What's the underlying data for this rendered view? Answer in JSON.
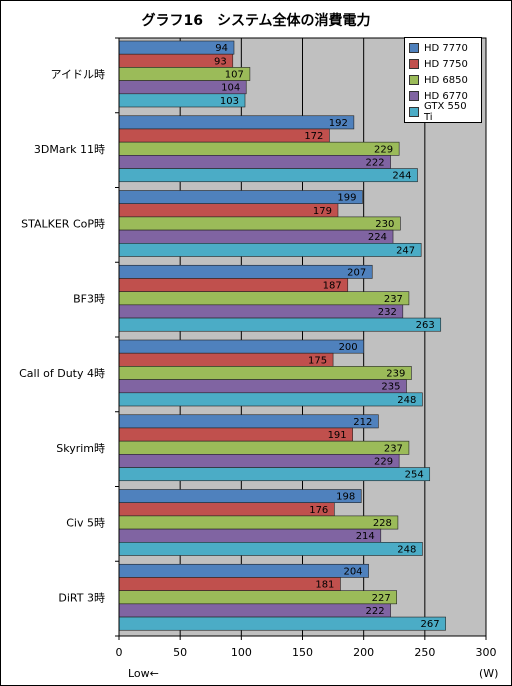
{
  "chart_data": {
    "type": "bar",
    "orientation": "horizontal",
    "title": "グラフ16　システム全体の消費電力",
    "unit_label": "(W)",
    "low_label": "Low←",
    "categories": [
      "アイドル時",
      "3DMark 11時",
      "STALKER  CoP時",
      "BF3時",
      "Call of Duty 4時",
      "Skyrim時",
      "Civ 5時",
      "DiRT 3時"
    ],
    "series": [
      {
        "name": "HD 7770",
        "color": "#4f81bd",
        "values": [
          94,
          192,
          199,
          207,
          200,
          212,
          198,
          204
        ]
      },
      {
        "name": "HD 7750",
        "color": "#c0504d",
        "values": [
          93,
          172,
          179,
          187,
          175,
          191,
          176,
          181
        ]
      },
      {
        "name": "HD 6850",
        "color": "#9bbb59",
        "values": [
          107,
          229,
          230,
          237,
          239,
          237,
          228,
          227
        ]
      },
      {
        "name": "HD 6770",
        "color": "#8064a2",
        "values": [
          104,
          222,
          224,
          232,
          235,
          229,
          214,
          222
        ]
      },
      {
        "name": "GTX 550 Ti",
        "color": "#4bacc6",
        "values": [
          103,
          244,
          247,
          263,
          248,
          254,
          248,
          267
        ]
      }
    ],
    "xlim": [
      0,
      300
    ],
    "xticks": [
      0,
      50,
      100,
      150,
      200,
      250,
      300
    ],
    "grid": true,
    "legend_position": "top-right",
    "plot_background": "#c0c0c0"
  }
}
